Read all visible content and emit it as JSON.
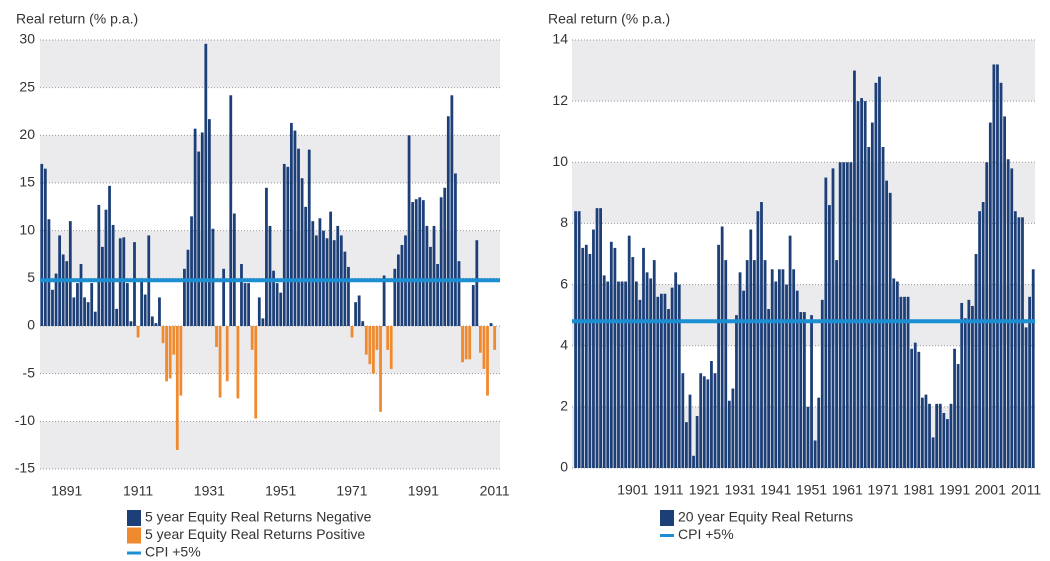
{
  "chart_data": [
    {
      "type": "bar",
      "y_label": "Real return (% p.a.)",
      "x": [
        1884,
        1885,
        1886,
        1887,
        1888,
        1889,
        1890,
        1891,
        1892,
        1893,
        1894,
        1895,
        1896,
        1897,
        1898,
        1899,
        1900,
        1901,
        1902,
        1903,
        1904,
        1905,
        1906,
        1907,
        1908,
        1909,
        1910,
        1911,
        1912,
        1913,
        1914,
        1915,
        1916,
        1917,
        1918,
        1919,
        1920,
        1921,
        1922,
        1923,
        1924,
        1925,
        1926,
        1927,
        1928,
        1929,
        1930,
        1931,
        1932,
        1933,
        1934,
        1935,
        1936,
        1937,
        1938,
        1939,
        1940,
        1941,
        1942,
        1943,
        1944,
        1945,
        1946,
        1947,
        1948,
        1949,
        1950,
        1951,
        1952,
        1953,
        1954,
        1955,
        1956,
        1957,
        1958,
        1959,
        1960,
        1961,
        1962,
        1963,
        1964,
        1965,
        1966,
        1967,
        1968,
        1969,
        1970,
        1971,
        1972,
        1973,
        1974,
        1975,
        1976,
        1977,
        1978,
        1979,
        1980,
        1981,
        1982,
        1983,
        1984,
        1985,
        1986,
        1987,
        1988,
        1989,
        1990,
        1991,
        1992,
        1993,
        1994,
        1995,
        1996,
        1997,
        1998,
        1999,
        2000,
        2001,
        2002,
        2003,
        2004,
        2005,
        2006,
        2007,
        2008,
        2009,
        2010,
        2011
      ],
      "values": [
        17,
        16.5,
        11.2,
        3.8,
        5.5,
        9.5,
        7.5,
        6.8,
        11,
        3,
        4.5,
        6.5,
        3,
        2.5,
        4.5,
        1.5,
        12.7,
        8.3,
        12.2,
        14.7,
        10.6,
        1.8,
        9.2,
        9.3,
        4.5,
        0.5,
        8.8,
        -1.2,
        5,
        3.3,
        9.5,
        1,
        0.3,
        3,
        -1.8,
        -5.8,
        -5.5,
        -3,
        -13,
        -7.3,
        6,
        8,
        11.5,
        20.7,
        18.3,
        20.3,
        29.6,
        21.7,
        10.2,
        -2.2,
        -7.5,
        6,
        -5.8,
        24.2,
        11.8,
        -7.6,
        6.5,
        4.5,
        4.5,
        -2.5,
        -9.7,
        3,
        0.8,
        14.5,
        10.5,
        5.8,
        4.5,
        3.5,
        17,
        16.7,
        21.3,
        20.5,
        18.6,
        15.5,
        12.5,
        18.5,
        11,
        9.5,
        11.3,
        10,
        9.2,
        12,
        9,
        10.5,
        9.5,
        7.8,
        6.2,
        -1.2,
        2.5,
        3.2,
        0.5,
        -3,
        -4,
        -5,
        -2.5,
        -9,
        5.3,
        -2.5,
        -4.5,
        6,
        7.5,
        8.5,
        9.5,
        20,
        13,
        13.3,
        13.5,
        13.2,
        10.5,
        8.3,
        10.5,
        6.5,
        13.5,
        14.5,
        22,
        24.2,
        16,
        6.8,
        -3.8,
        -3.5,
        -3.5,
        4.3,
        9,
        -2.8,
        -4.5,
        -7.3,
        0.3,
        -2.5
      ],
      "legend": [
        {
          "name": "5 year Equity Real Returns Negative",
          "color": "#1d3f78"
        },
        {
          "name": "5 year Equity Real Returns Positive",
          "color": "#f08a2e"
        }
      ],
      "reference_line": {
        "name": "CPI +5%",
        "value": 4.8,
        "color": "#1b8fd2"
      },
      "xlim": [
        1883.5,
        2012.5
      ],
      "xticks": [
        1891,
        1911,
        1931,
        1951,
        1971,
        1991,
        2011
      ],
      "ylim": [
        -15,
        30
      ],
      "yticks": [
        -15,
        -10,
        -5,
        0,
        5,
        10,
        15,
        20,
        25,
        30
      ],
      "grid": true
    },
    {
      "type": "bar",
      "y_label": "Real return (% p.a.)",
      "x": [
        1885,
        1886,
        1887,
        1888,
        1889,
        1890,
        1891,
        1892,
        1893,
        1894,
        1895,
        1896,
        1897,
        1898,
        1899,
        1900,
        1901,
        1902,
        1903,
        1904,
        1905,
        1906,
        1907,
        1908,
        1909,
        1910,
        1911,
        1912,
        1913,
        1914,
        1915,
        1916,
        1917,
        1918,
        1919,
        1920,
        1921,
        1922,
        1923,
        1924,
        1925,
        1926,
        1927,
        1928,
        1929,
        1930,
        1931,
        1932,
        1933,
        1934,
        1935,
        1936,
        1937,
        1938,
        1939,
        1940,
        1941,
        1942,
        1943,
        1944,
        1945,
        1946,
        1947,
        1948,
        1949,
        1950,
        1951,
        1952,
        1953,
        1954,
        1955,
        1956,
        1957,
        1958,
        1959,
        1960,
        1961,
        1962,
        1963,
        1964,
        1965,
        1966,
        1967,
        1968,
        1969,
        1970,
        1971,
        1972,
        1973,
        1974,
        1975,
        1976,
        1977,
        1978,
        1979,
        1980,
        1981,
        1982,
        1983,
        1984,
        1985,
        1986,
        1987,
        1988,
        1989,
        1990,
        1991,
        1992,
        1993,
        1994,
        1995,
        1996,
        1997,
        1998,
        1999,
        2000,
        2001,
        2002,
        2003,
        2004,
        2005,
        2006,
        2007,
        2008,
        2009,
        2010,
        2011,
        2012,
        2013
      ],
      "values": [
        8.4,
        8.4,
        7.2,
        7.3,
        7.0,
        7.8,
        8.5,
        8.5,
        6.3,
        6.1,
        7.4,
        7.2,
        6.1,
        6.1,
        6.1,
        7.6,
        6.9,
        6.1,
        5.5,
        7.2,
        6.4,
        6.2,
        6.8,
        5.6,
        5.7,
        5.7,
        5.2,
        5.9,
        6.4,
        6.0,
        3.1,
        1.5,
        2.4,
        0.4,
        1.7,
        3.1,
        3.0,
        2.9,
        3.5,
        3.1,
        7.3,
        7.9,
        6.8,
        2.2,
        2.6,
        5.0,
        6.4,
        5.8,
        6.8,
        7.8,
        6.8,
        8.4,
        8.7,
        6.8,
        5.2,
        6.5,
        6.1,
        6.5,
        6.5,
        6.0,
        7.6,
        6.5,
        5.8,
        5.1,
        5.1,
        2.0,
        5.0,
        0.9,
        2.3,
        5.5,
        9.5,
        8.6,
        9.8,
        6.8,
        10.0,
        10.0,
        10.0,
        10.0,
        13.0,
        12.0,
        12.1,
        12.0,
        10.5,
        11.3,
        12.6,
        12.8,
        10.5,
        9.4,
        9.0,
        6.2,
        6.1,
        5.6,
        5.6,
        5.6,
        3.9,
        4.1,
        3.8,
        2.3,
        2.4,
        2.1,
        1.0,
        2.1,
        2.1,
        1.8,
        1.6,
        2.1,
        3.9,
        3.4,
        5.4,
        4.9,
        5.5,
        5.3,
        7.0,
        8.4,
        8.7,
        10.0,
        11.3,
        13.2,
        13.2,
        12.6,
        11.5,
        10.1,
        9.8,
        8.4,
        8.2,
        8.2,
        4.6,
        5.6,
        6.5
      ],
      "legend": [
        {
          "name": "20 year Equity Real Returns",
          "color": "#1d3f78"
        }
      ],
      "reference_line": {
        "name": "CPI +5%",
        "value": 4.8,
        "color": "#1b8fd2"
      },
      "xlim": [
        1884,
        2013.5
      ],
      "xticks": [
        1901,
        1911,
        1921,
        1931,
        1941,
        1951,
        1961,
        1971,
        1981,
        1991,
        2001,
        2011
      ],
      "ylim": [
        0,
        14
      ],
      "yticks": [
        0,
        2,
        4,
        6,
        8,
        10,
        12,
        14
      ],
      "grid": true
    }
  ]
}
